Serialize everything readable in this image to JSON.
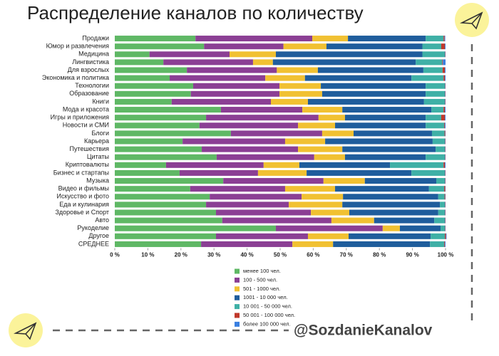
{
  "chart_data": {
    "type": "stacked-bar-horizontal",
    "title": "Распределение каналов по количеству",
    "watermark": "@SozdanieKanalov",
    "categories": [
      "Продажи",
      "Юмор и развлечения",
      "Медицина",
      "Лингвистика",
      "Для взрослых",
      "Экономика и политика",
      "Технологии",
      "Образование",
      "Книги",
      "Мода и красота",
      "Игры и приложения",
      "Новости и СМИ",
      "Блоги",
      "Карьера",
      "Путешествия",
      "Цитаты",
      "Криптовалюты",
      "Бизнес и стартапы",
      "Музыка",
      "Видео и фильмы",
      "Искусство и фото",
      "Еда и кулинария",
      "Здоровье и Спорт",
      "Авто",
      "Рукоделие",
      "Другое",
      "СРЕДНЕЕ"
    ],
    "series": [
      {
        "name": "менее 100 чел.",
        "color": "#5fb865",
        "values": [
          24.4,
          27,
          10.5,
          14.7,
          21.8,
          16.6,
          23.7,
          23,
          17.2,
          32.1,
          27.6,
          25.6,
          35.1,
          20.5,
          26.3,
          30.8,
          15.5,
          19.6,
          32.8,
          22.8,
          28.7,
          27.6,
          30.6,
          32.5,
          48.7,
          30.6,
          26.1
        ]
      },
      {
        "name": "100 - 500 чел.",
        "color": "#8b3f94",
        "values": [
          35.3,
          24,
          24.2,
          27.1,
          27.2,
          28.9,
          26.1,
          26.8,
          30,
          24.6,
          34,
          29.8,
          27.6,
          31,
          29.1,
          29.5,
          29.5,
          23.7,
          30.3,
          28.7,
          27.8,
          25,
          28.7,
          33,
          32.3,
          27.8,
          27.6
        ]
      },
      {
        "name": "501 - 1000 чел.",
        "color": "#f1c132",
        "values": [
          10.8,
          13,
          14,
          6,
          12.4,
          12,
          12.5,
          12.9,
          11.2,
          12.1,
          8,
          11.2,
          9.5,
          12.1,
          13.4,
          9.3,
          10.8,
          14.7,
          12.5,
          15.1,
          12.5,
          16.2,
          11.6,
          12.9,
          5.2,
          12.3,
          12.3
        ]
      },
      {
        "name": "1001 - 10 000 чел.",
        "color": "#1f5d9c",
        "values": [
          23.5,
          29,
          44.3,
          43.2,
          31.9,
          32.2,
          31.7,
          31.3,
          35.1,
          26.9,
          24.4,
          27.4,
          23.7,
          32.5,
          28.2,
          24.4,
          27.4,
          31.7,
          21.6,
          28.4,
          28.8,
          29.5,
          26.9,
          18.2,
          12.3,
          24.8,
          29.3
        ]
      },
      {
        "name": "10 001 - 50 000 чел.",
        "color": "#3fb0a6",
        "values": [
          5.4,
          5.7,
          6.8,
          8,
          5.8,
          9.7,
          5.8,
          5.8,
          6.3,
          3.7,
          4.7,
          5.6,
          3.8,
          3.7,
          2.8,
          5.8,
          16.2,
          10.1,
          2.6,
          4.6,
          1.9,
          1.5,
          2,
          3.2,
          1.3,
          4.3,
          4.3
        ]
      },
      {
        "name": "50 001 - 100 000 чел.",
        "color": "#c0392b",
        "values": [
          0.3,
          1.1,
          0.1,
          0.2,
          0.7,
          0.4,
          0.1,
          0.1,
          0.1,
          0.4,
          1.1,
          0.2,
          0.2,
          0.1,
          0.1,
          0.1,
          0.4,
          0.1,
          0.1,
          0.3,
          0.2,
          0.1,
          0.1,
          0.1,
          0.1,
          0.3,
          0.2
        ]
      },
      {
        "name": "более 100 000 чел.",
        "color": "#3a7fe0",
        "values": [
          0.2,
          0.2,
          0.1,
          0.8,
          0.2,
          0.2,
          0.1,
          0.1,
          0.1,
          0.2,
          0.2,
          0.2,
          0.1,
          0.1,
          0.1,
          0.1,
          0.2,
          0.1,
          0.1,
          0.1,
          0.1,
          0.1,
          0.1,
          0.1,
          0.1,
          0.2,
          0.2
        ]
      }
    ],
    "xlim": [
      0,
      100
    ],
    "xticks": [
      {
        "value": 0,
        "label": "0 %"
      },
      {
        "value": 10,
        "label": "10 %"
      },
      {
        "value": 20,
        "label": "20 %"
      },
      {
        "value": 30,
        "label": "30 %"
      },
      {
        "value": 40,
        "label": "40 %"
      },
      {
        "value": 50,
        "label": "50 %"
      },
      {
        "value": 60,
        "label": "60 %"
      },
      {
        "value": 70,
        "label": "70 %"
      },
      {
        "value": 80,
        "label": "80 %"
      },
      {
        "value": 90,
        "label": "90 %"
      },
      {
        "value": 100,
        "label": "100 %"
      }
    ],
    "legend": "bottom"
  }
}
